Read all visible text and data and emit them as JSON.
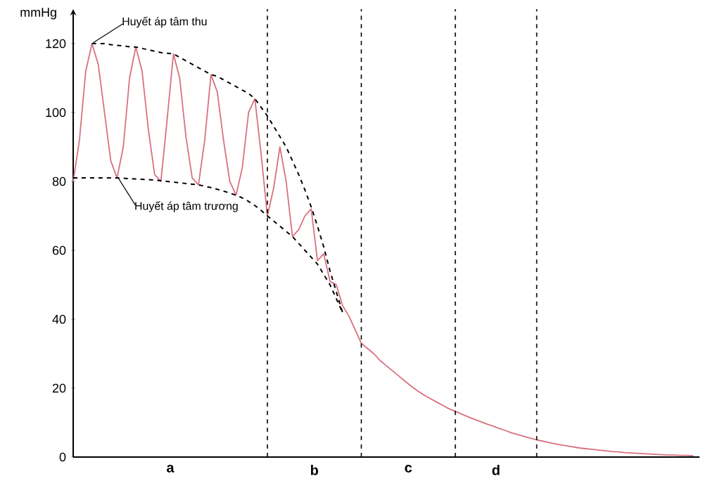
{
  "chart_data": {
    "type": "line",
    "ylabel": "mmHg",
    "ylim": [
      0,
      130
    ],
    "yticks": [
      0,
      20,
      40,
      60,
      80,
      100,
      120
    ],
    "tick_labels": "y",
    "grid": "x",
    "marker": "none",
    "categories": [
      null,
      null,
      null,
      null,
      null,
      null,
      null,
      null,
      null,
      null,
      null,
      null,
      null,
      null,
      null,
      null,
      null,
      null,
      null,
      null,
      null,
      null,
      null,
      null,
      null,
      null,
      null,
      null,
      null,
      null,
      null,
      null,
      null,
      null,
      null,
      null,
      null,
      null,
      null,
      null,
      null,
      null,
      null,
      null,
      null,
      null,
      null,
      null,
      null,
      null,
      null,
      null,
      null,
      null,
      null,
      null,
      null,
      null,
      null,
      null,
      null,
      null,
      null,
      null,
      null,
      null,
      null,
      null,
      null,
      null,
      null,
      null,
      null,
      null,
      null,
      null,
      null,
      null,
      null,
      null,
      null,
      null,
      null,
      null,
      null,
      null,
      null,
      null,
      null,
      null,
      null,
      null,
      null,
      null,
      null,
      null,
      null,
      null,
      null,
      null
    ],
    "series": [
      {
        "color": "#d9707f",
        "line_style": "solid",
        "values": [
          80,
          92,
          112,
          120,
          114,
          100,
          86,
          81,
          90,
          110,
          119,
          112,
          95,
          82,
          80,
          98,
          117,
          110,
          93,
          81,
          79,
          92,
          111,
          106,
          92,
          80,
          76,
          84,
          100,
          104,
          88,
          70,
          78,
          90,
          80,
          64,
          66,
          70,
          72,
          57,
          59,
          51,
          50,
          44,
          41,
          37,
          33,
          31.5,
          30,
          28,
          26.5,
          25,
          23.5,
          22,
          20.5,
          19.2,
          18,
          17,
          16,
          15,
          14,
          13.3,
          12.5,
          11.7,
          11,
          10.3,
          9.6,
          9,
          8.3,
          7.7,
          7,
          6.5,
          6,
          5.5,
          5,
          4.6,
          4.2,
          3.8,
          3.5,
          3.2,
          2.9,
          2.6,
          2.4,
          2.2,
          2,
          1.8,
          1.6,
          1.5,
          1.3,
          1.2,
          1.1,
          1,
          0.9,
          0.8,
          0.7,
          0.6,
          0.6,
          0.5,
          0.5,
          0.4
        ]
      },
      {
        "color": "#000000",
        "line_style": "dashed",
        "values": [
          null,
          null,
          null,
          120,
          120,
          120,
          119.7,
          119.5,
          119.3,
          119.1,
          119,
          118.6,
          118.2,
          117.8,
          117.4,
          117.2,
          117,
          116,
          115,
          114,
          113,
          112,
          111,
          110.5,
          109.5,
          108.5,
          107.5,
          106.5,
          105.5,
          104,
          101.5,
          99,
          96,
          93,
          90,
          86,
          82,
          77.5,
          72.6,
          67,
          61,
          54,
          48,
          42,
          null,
          null,
          null,
          null,
          null,
          null,
          null,
          null,
          null,
          null,
          null,
          null,
          null,
          null,
          null,
          null,
          null,
          null,
          null,
          null,
          null,
          null,
          null,
          null,
          null,
          null,
          null,
          null,
          null,
          null,
          null,
          null,
          null,
          null,
          null,
          null,
          null,
          null,
          null,
          null,
          null,
          null,
          null,
          null,
          null,
          null,
          null,
          null,
          null,
          null,
          null,
          null,
          null,
          null,
          null,
          null
        ]
      },
      {
        "color": "#000000",
        "line_style": "dashed",
        "values": [
          81,
          81,
          81,
          81,
          81,
          81,
          81,
          81,
          80.9,
          80.8,
          80.7,
          80.6,
          80.5,
          80.4,
          80.2,
          80,
          79.8,
          79.6,
          79.4,
          79.2,
          79,
          78.6,
          78.2,
          77.7,
          77.2,
          76.6,
          76,
          75.2,
          74.2,
          73,
          71.6,
          70,
          68.5,
          67,
          65.5,
          64,
          62,
          60,
          58,
          56,
          53,
          50,
          46,
          42,
          null,
          null,
          null,
          null,
          null,
          null,
          null,
          null,
          null,
          null,
          null,
          null,
          null,
          null,
          null,
          null,
          null,
          null,
          null,
          null,
          null,
          null,
          null,
          null,
          null,
          null,
          null,
          null,
          null,
          null,
          null,
          null,
          null,
          null,
          null,
          null,
          null,
          null,
          null,
          null,
          null,
          null,
          null,
          null,
          null,
          null,
          null,
          null,
          null,
          null,
          null,
          null,
          null,
          null,
          null,
          null
        ]
      }
    ],
    "annotations": [
      "Huyết áp tâm thu",
      "Huyết áp tâm trương",
      "a",
      "b",
      "c",
      "d"
    ]
  }
}
